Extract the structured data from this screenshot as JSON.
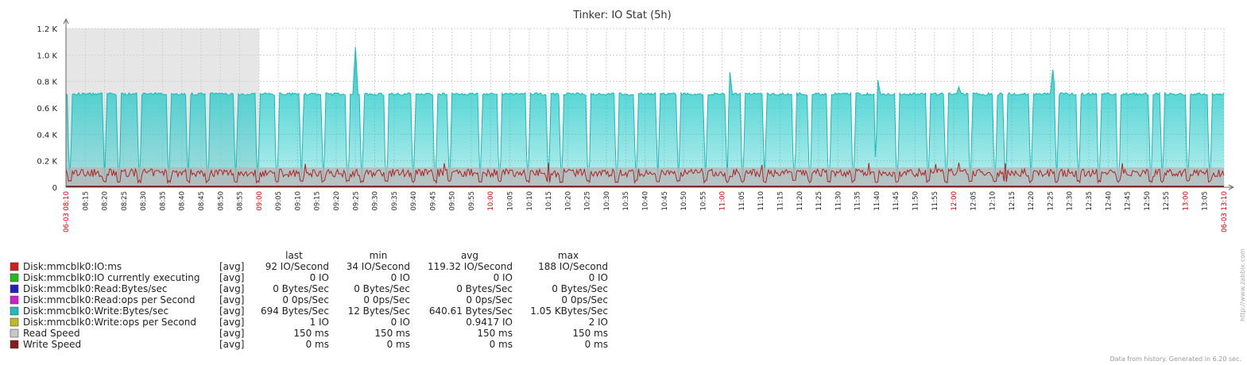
{
  "chart_data": {
    "type": "area",
    "title": "Tinker: IO Stat (5h)",
    "y_ticks": [
      "0",
      "0.2 K",
      "0.4 K",
      "0.6 K",
      "0.8 K",
      "1.0 K",
      "1.2 K"
    ],
    "ylim": [
      0,
      1200
    ],
    "x_start_label": "06-03 08:10",
    "x_end_label": "06-03 13:10",
    "x_tick_labels": [
      "08:15",
      "08:20",
      "08:25",
      "08:30",
      "08:35",
      "08:40",
      "08:45",
      "08:50",
      "08:55",
      "09:00",
      "09:05",
      "09:10",
      "09:15",
      "09:20",
      "09:25",
      "09:30",
      "09:35",
      "09:40",
      "09:45",
      "09:50",
      "09:55",
      "10:00",
      "10:05",
      "10:10",
      "10:15",
      "10:20",
      "10:25",
      "10:30",
      "10:35",
      "10:40",
      "10:45",
      "10:50",
      "10:55",
      "11:00",
      "11:05",
      "11:10",
      "11:15",
      "11:20",
      "11:25",
      "11:30",
      "11:35",
      "11:40",
      "11:45",
      "11:50",
      "11:55",
      "12:00",
      "12:05",
      "12:10",
      "12:15",
      "12:20",
      "12:25",
      "12:30",
      "12:35",
      "12:40",
      "12:45",
      "12:50",
      "12:55",
      "13:00",
      "13:05"
    ],
    "x_red_labels": [
      "09:00",
      "10:00",
      "11:00",
      "12:00",
      "13:00"
    ],
    "shaded_region": [
      "08:10",
      "08:55"
    ],
    "series": [
      {
        "name": "Disk:mmcblk0:Write:Bytes/sec",
        "color": "#1fc8c8",
        "baseline": 700,
        "drops": 52,
        "spikes": [
          [
            0.25,
            1060
          ],
          [
            0.573,
            870
          ],
          [
            0.701,
            810
          ],
          [
            0.771,
            760
          ],
          [
            0.852,
            890
          ]
        ]
      },
      {
        "name": "Read Speed",
        "color": "#c0c0c0",
        "baseline": 150
      },
      {
        "name": "Disk:mmcblk0:IO:ms",
        "color": "#b22222",
        "baseline": 119,
        "min": 34,
        "max": 188
      }
    ]
  },
  "legend": {
    "headers": {
      "last": "last",
      "min": "min",
      "avg": "avg",
      "max": "max"
    },
    "rows": [
      {
        "name": "Disk:mmcblk0:IO:ms",
        "color": "#cc2222",
        "func": "[avg]",
        "last": "92 IO/Second",
        "min": "34 IO/Second",
        "avg": "119.32 IO/Second",
        "max": "188 IO/Second"
      },
      {
        "name": "Disk:mmcblk0:IO currently executing",
        "color": "#22bb22",
        "func": "[avg]",
        "last": "0 IO",
        "min": "0 IO",
        "avg": "0 IO",
        "max": "0 IO"
      },
      {
        "name": "Disk:mmcblk0:Read:Bytes/sec",
        "color": "#2222bb",
        "func": "[avg]",
        "last": "0 Bytes/Sec",
        "min": "0 Bytes/Sec",
        "avg": "0 Bytes/Sec",
        "max": "0 Bytes/Sec"
      },
      {
        "name": "Disk:mmcblk0:Read:ops per Second",
        "color": "#cc22cc",
        "func": "[avg]",
        "last": "0 0ps/Sec",
        "min": "0 0ps/Sec",
        "avg": "0 0ps/Sec",
        "max": "0 0ps/Sec"
      },
      {
        "name": "Disk:mmcblk0:Write:Bytes/sec",
        "color": "#22bbbb",
        "func": "[avg]",
        "last": "694 Bytes/Sec",
        "min": "12 Bytes/Sec",
        "avg": "640.61 Bytes/Sec",
        "max": "1.05 KBytes/Sec"
      },
      {
        "name": "Disk:mmcblk0:Write:ops per Second",
        "color": "#bbbb22",
        "func": "[avg]",
        "last": "1 IO",
        "min": "0 IO",
        "avg": "0.9417 IO",
        "max": "2 IO"
      },
      {
        "name": "Read Speed",
        "color": "#c8c8c8",
        "func": "[avg]",
        "last": "150 ms",
        "min": "150 ms",
        "avg": "150 ms",
        "max": "150 ms"
      },
      {
        "name": "Write Speed",
        "color": "#8b1a1a",
        "func": "[avg]",
        "last": "0 ms",
        "min": "0 ms",
        "avg": "0 ms",
        "max": "0 ms"
      }
    ]
  },
  "footer": "Data from history. Generated in 6.20 sec.",
  "watermark": "http://www.zabbix.com"
}
